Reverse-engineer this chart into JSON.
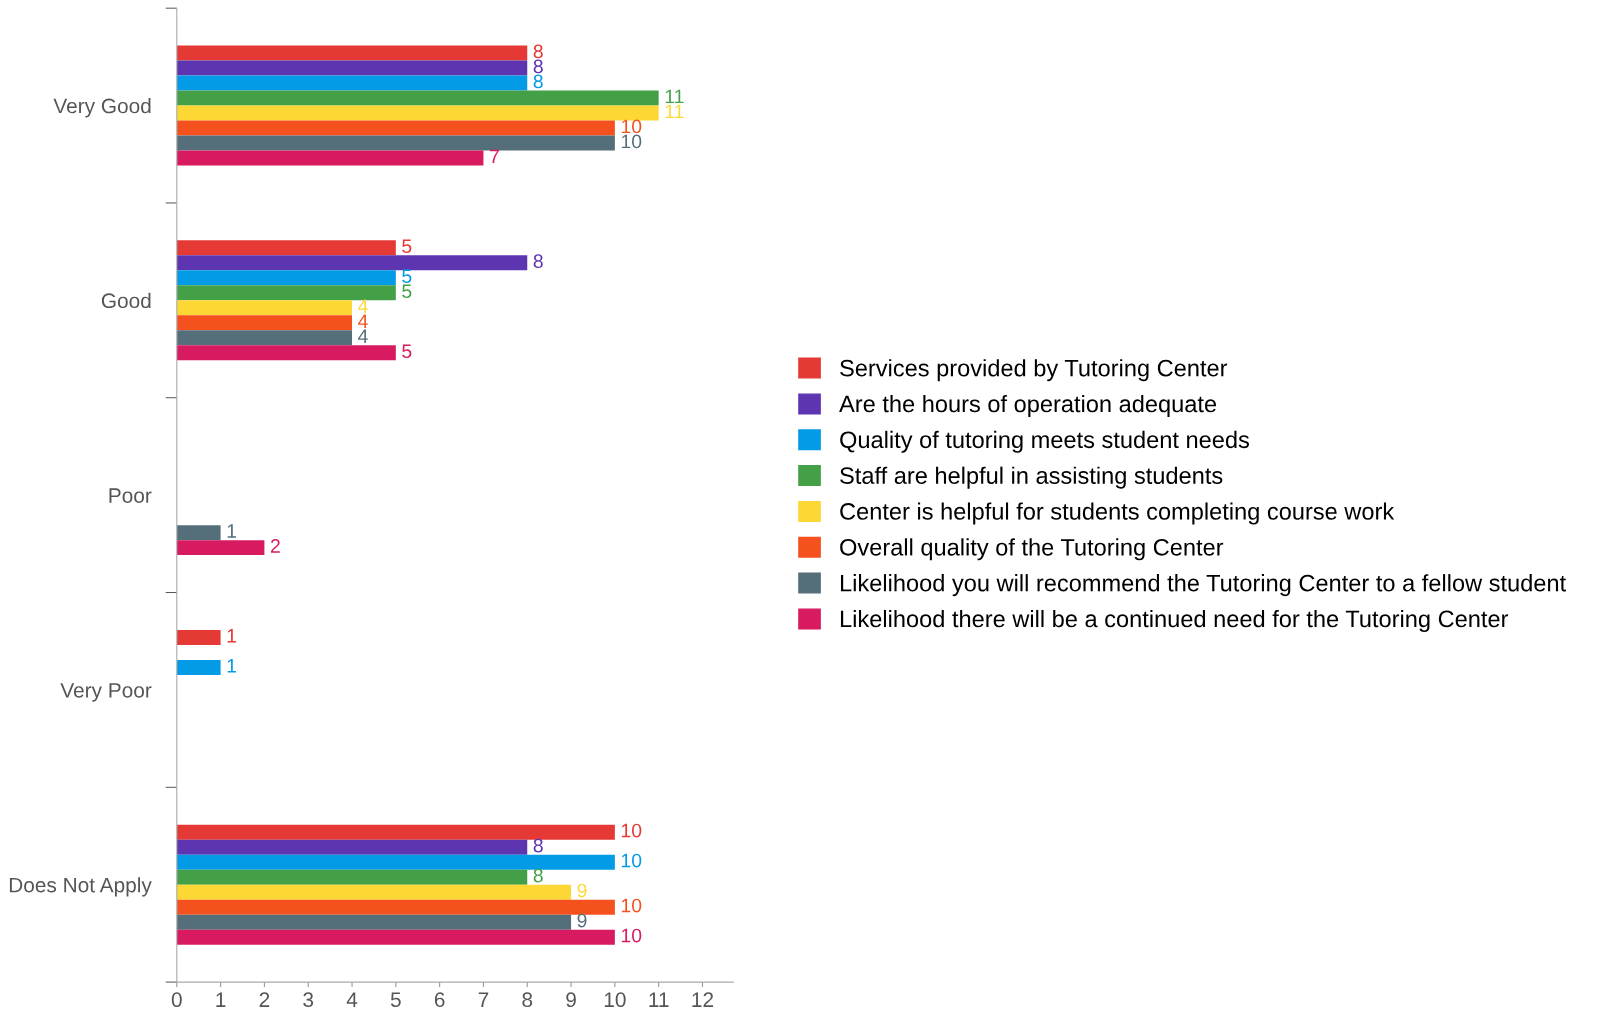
{
  "chart_data": {
    "type": "bar",
    "orientation": "horizontal",
    "categories": [
      "Very Good",
      "Good",
      "Poor",
      "Very Poor",
      "Does Not Apply"
    ],
    "series": [
      {
        "name": "Services provided by Tutoring Center",
        "color": "#e53935",
        "values": [
          8,
          5,
          null,
          1,
          10
        ]
      },
      {
        "name": "Are the hours of operation adequate",
        "color": "#5e35b1",
        "values": [
          8,
          8,
          null,
          null,
          8
        ]
      },
      {
        "name": "Quality of tutoring meets student needs",
        "color": "#039be5",
        "values": [
          8,
          5,
          null,
          1,
          10
        ]
      },
      {
        "name": "Staff are helpful in assisting students",
        "color": "#43a047",
        "values": [
          11,
          5,
          null,
          null,
          8
        ]
      },
      {
        "name": "Center is helpful for students completing course work",
        "color": "#fdd835",
        "values": [
          11,
          4,
          null,
          null,
          9
        ]
      },
      {
        "name": "Overall quality of the Tutoring Center",
        "color": "#f4511e",
        "values": [
          10,
          4,
          null,
          null,
          10
        ]
      },
      {
        "name": "Likelihood you will recommend the Tutoring Center to a fellow student",
        "color": "#546e7a",
        "values": [
          10,
          4,
          1,
          null,
          9
        ]
      },
      {
        "name": "Likelihood there will be a continued need for the Tutoring Center",
        "color": "#d81b60",
        "values": [
          7,
          5,
          2,
          null,
          10
        ]
      }
    ],
    "xlim": [
      0,
      12.7
    ],
    "xticks": [
      0,
      1,
      2,
      3,
      4,
      5,
      6,
      7,
      8,
      9,
      10,
      11,
      12
    ],
    "data_labels": true,
    "grid": false,
    "legend": "right"
  }
}
